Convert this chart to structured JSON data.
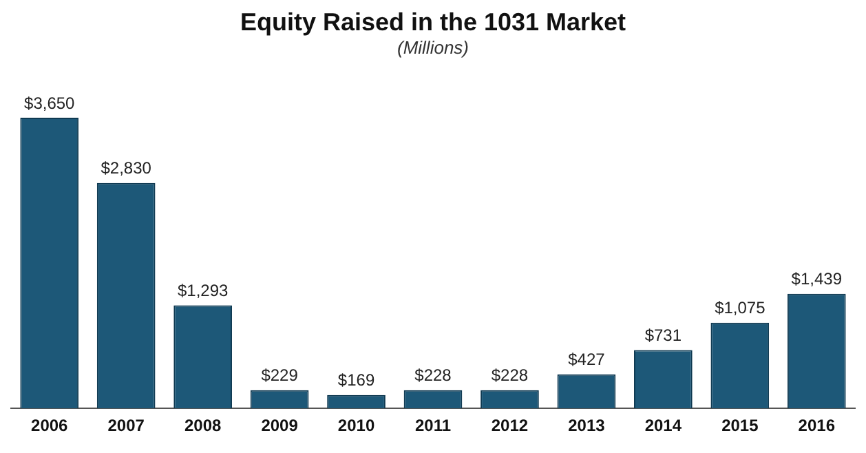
{
  "chart_data": {
    "type": "bar",
    "title": "Equity Raised in the 1031 Market",
    "subtitle": "(Millions)",
    "categories": [
      "2006",
      "2007",
      "2008",
      "2009",
      "2010",
      "2011",
      "2012",
      "2013",
      "2014",
      "2015",
      "2016"
    ],
    "values": [
      3650,
      2830,
      1293,
      229,
      169,
      228,
      228,
      427,
      731,
      1075,
      1439
    ],
    "value_labels": [
      "$3,650",
      "$2,830",
      "$1,293",
      "$229",
      "$169",
      "$228",
      "$228",
      "$427",
      "$731",
      "$1,075",
      "$1,439"
    ],
    "color": "#1d5878",
    "grid": false,
    "legend": false
  }
}
